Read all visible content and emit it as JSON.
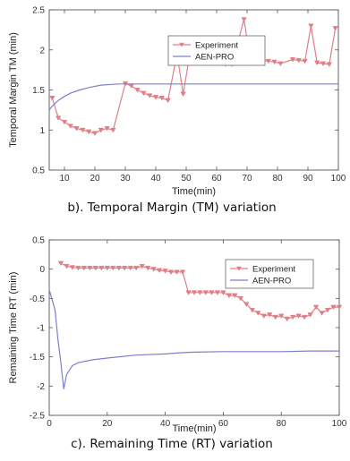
{
  "chart_data": [
    {
      "type": "line",
      "caption": "b). Temporal Margin (TM) variation",
      "xlabel": "Time(min)",
      "ylabel": "Temporal Margin TM  (min)",
      "xlim": [
        5,
        100
      ],
      "ylim": [
        0.5,
        2.5
      ],
      "xticks": [
        "10",
        "20",
        "30",
        "40",
        "50",
        "60",
        "70",
        "80",
        "90",
        "100"
      ],
      "yticks": [
        "0.5",
        "1",
        "1.5",
        "2",
        "2.5"
      ],
      "grid": false,
      "legend": "top-left",
      "series": [
        {
          "name": "Experiment",
          "color": "#e07f86",
          "marker": "triangle-down",
          "x": [
            6,
            8,
            10,
            12,
            14,
            16,
            18,
            20,
            22,
            24,
            26,
            30,
            32,
            34,
            36,
            38,
            40,
            42,
            44,
            47,
            49,
            51,
            53,
            55,
            57,
            59,
            61,
            63,
            65,
            69,
            71,
            73,
            75,
            77,
            79,
            81,
            85,
            87,
            89,
            91,
            93,
            95,
            97,
            99
          ],
          "y": [
            1.4,
            1.15,
            1.1,
            1.05,
            1.02,
            1.0,
            0.98,
            0.96,
            1.0,
            1.02,
            1.0,
            1.58,
            1.55,
            1.5,
            1.46,
            1.43,
            1.41,
            1.4,
            1.37,
            1.95,
            1.45,
            1.9,
            1.88,
            1.87,
            1.85,
            1.84,
            1.83,
            1.82,
            1.82,
            2.38,
            1.89,
            1.88,
            1.87,
            1.86,
            1.85,
            1.83,
            1.88,
            1.87,
            1.86,
            2.3,
            1.84,
            1.83,
            1.82,
            2.27
          ]
        },
        {
          "name": "AEN-PRO",
          "color": "#7d7fcf",
          "marker": "none",
          "x": [
            5,
            6,
            8,
            10,
            12,
            15,
            18,
            22,
            26,
            28,
            30,
            40,
            50,
            60,
            70,
            80,
            90,
            100
          ],
          "y": [
            1.25,
            1.3,
            1.37,
            1.42,
            1.46,
            1.5,
            1.53,
            1.56,
            1.57,
            1.575,
            1.575,
            1.575,
            1.575,
            1.575,
            1.575,
            1.575,
            1.575,
            1.575
          ]
        }
      ]
    },
    {
      "type": "line",
      "caption": "c). Remaining Time (RT) variation",
      "xlabel": "Time(min)",
      "ylabel": "Remaining Time RT  (min)",
      "xlim": [
        0,
        100
      ],
      "ylim": [
        -2.5,
        0.5
      ],
      "xticks": [
        "0",
        "20",
        "40",
        "60",
        "80",
        "100"
      ],
      "yticks": [
        "0.5",
        "0",
        "-0.5",
        "-1",
        "-1.5",
        "-2",
        "-2.5"
      ],
      "grid": false,
      "legend": "top-right",
      "series": [
        {
          "name": "Experiment",
          "color": "#e07f86",
          "marker": "triangle-down",
          "x": [
            4,
            6,
            8,
            10,
            12,
            14,
            16,
            18,
            20,
            22,
            24,
            26,
            28,
            30,
            32,
            34,
            36,
            38,
            40,
            42,
            44,
            46,
            48,
            50,
            52,
            54,
            56,
            58,
            60,
            62,
            64,
            66,
            68,
            70,
            72,
            74,
            76,
            78,
            80,
            82,
            84,
            86,
            88,
            90,
            92,
            94,
            96,
            98,
            100
          ],
          "y": [
            0.1,
            0.05,
            0.03,
            0.02,
            0.02,
            0.02,
            0.02,
            0.02,
            0.02,
            0.02,
            0.02,
            0.02,
            0.02,
            0.02,
            0.05,
            0.02,
            0.0,
            -0.02,
            -0.03,
            -0.05,
            -0.05,
            -0.05,
            -0.4,
            -0.4,
            -0.4,
            -0.4,
            -0.4,
            -0.4,
            -0.4,
            -0.45,
            -0.45,
            -0.5,
            -0.6,
            -0.7,
            -0.75,
            -0.8,
            -0.78,
            -0.82,
            -0.8,
            -0.85,
            -0.82,
            -0.8,
            -0.82,
            -0.78,
            -0.65,
            -0.75,
            -0.7,
            -0.65,
            -0.65
          ]
        },
        {
          "name": "AEN-PRO",
          "color": "#7d7fcf",
          "marker": "none",
          "x": [
            0,
            2,
            3,
            4,
            5,
            6,
            8,
            10,
            15,
            20,
            30,
            40,
            45,
            50,
            60,
            70,
            80,
            90,
            100
          ],
          "y": [
            -0.35,
            -0.7,
            -1.2,
            -1.6,
            -2.05,
            -1.8,
            -1.65,
            -1.6,
            -1.55,
            -1.52,
            -1.47,
            -1.45,
            -1.43,
            -1.42,
            -1.41,
            -1.41,
            -1.41,
            -1.4,
            -1.4
          ]
        }
      ]
    }
  ]
}
